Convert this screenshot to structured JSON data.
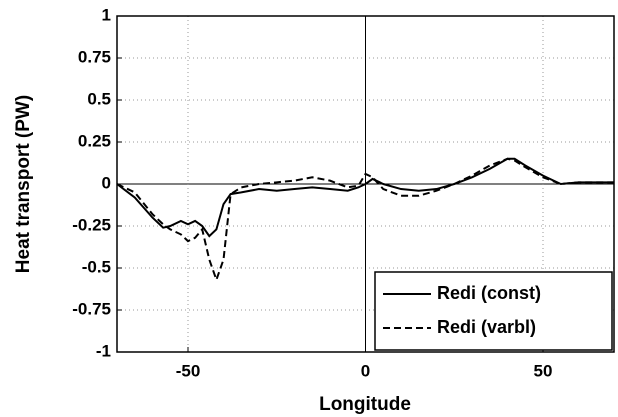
{
  "chart_data": {
    "type": "line",
    "x_label": "Longitude",
    "y_label": "Heat transport (PW)",
    "x": [
      -70,
      -65,
      -60,
      -57,
      -55,
      -52,
      -50,
      -48,
      -46,
      -44,
      -42,
      -40,
      -38,
      -35,
      -30,
      -25,
      -20,
      -15,
      -10,
      -5,
      -2,
      0,
      2,
      5,
      10,
      15,
      20,
      25,
      30,
      35,
      40,
      42,
      45,
      50,
      55,
      60,
      70
    ],
    "series": [
      {
        "name": "Redi (const)",
        "color": "#000000",
        "linestyle": "solid",
        "values": [
          0,
          -0.08,
          -0.2,
          -0.26,
          -0.25,
          -0.22,
          -0.24,
          -0.22,
          -0.25,
          -0.31,
          -0.27,
          -0.12,
          -0.06,
          -0.05,
          -0.03,
          -0.04,
          -0.03,
          -0.02,
          -0.03,
          -0.04,
          -0.02,
          0,
          0.03,
          0,
          -0.03,
          -0.04,
          -0.03,
          0,
          0.04,
          0.09,
          0.15,
          0.15,
          0.11,
          0.05,
          0,
          0.01,
          0.01
        ]
      },
      {
        "name": "Redi (varbl)",
        "color": "#000000",
        "linestyle": "dashed",
        "values": [
          0,
          -0.05,
          -0.18,
          -0.24,
          -0.27,
          -0.3,
          -0.34,
          -0.32,
          -0.27,
          -0.45,
          -0.57,
          -0.45,
          -0.06,
          -0.02,
          0,
          0.01,
          0.02,
          0.04,
          0.02,
          -0.02,
          -0.01,
          0.06,
          0.04,
          -0.03,
          -0.07,
          -0.07,
          -0.04,
          0,
          0.05,
          0.11,
          0.15,
          0.14,
          0.1,
          0.04,
          0,
          0.01,
          0.01
        ]
      }
    ],
    "xlim": [
      -70,
      70
    ],
    "xticks": [
      -50,
      0,
      50
    ],
    "ylim": [
      -1,
      1
    ],
    "yticks": [
      1,
      0.75,
      0.5,
      0.25,
      0,
      -0.25,
      -0.5,
      -0.75,
      -1
    ],
    "grid": true,
    "legend": "lower right"
  }
}
